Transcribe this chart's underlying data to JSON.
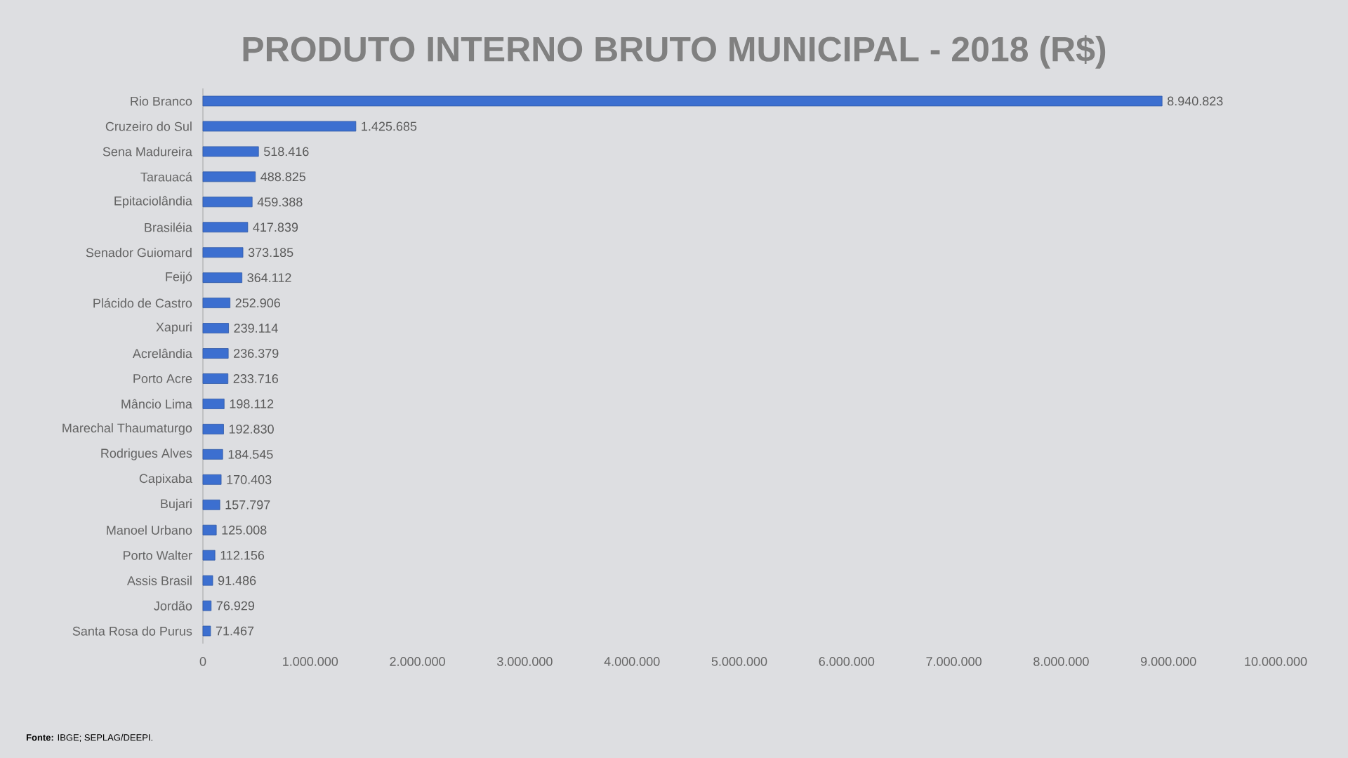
{
  "chart_data": {
    "type": "bar",
    "orientation": "horizontal",
    "title": "PRODUTO INTERNO BRUTO MUNICIPAL - 2018 (R$)",
    "categories": [
      "Rio Branco",
      "Cruzeiro do Sul",
      "Sena Madureira",
      "Tarauacá",
      "Epitaciolândia",
      "Brasiléia",
      "Senador Guiomard",
      "Feijó",
      "Plácido de Castro",
      "Xapuri",
      "Acrelândia",
      "Porto Acre",
      "Mâncio Lima",
      "Marechal Thaumaturgo",
      "Rodrigues Alves",
      "Capixaba",
      "Bujari",
      "Manoel Urbano",
      "Porto Walter",
      "Assis Brasil",
      "Jordão",
      "Santa Rosa do Purus"
    ],
    "values": [
      8940823,
      1425685,
      518416,
      488825,
      459388,
      417839,
      373185,
      364112,
      252906,
      239114,
      236379,
      233716,
      198112,
      192830,
      184545,
      170403,
      157797,
      125008,
      112156,
      91486,
      76929,
      71467
    ],
    "value_labels": [
      "8.940.823",
      "1.425.685",
      "518.416",
      "488.825",
      "459.388",
      "417.839",
      "373.185",
      "364.112",
      "252.906",
      "239.114",
      "236.379",
      "233.716",
      "198.112",
      "192.830",
      "184.545",
      "170.403",
      "157.797",
      "125.008",
      "112.156",
      "91.486",
      "76.929",
      "71.467"
    ],
    "color": "#3c6fd0",
    "xlim": [
      0,
      10000000
    ],
    "xticks": [
      0,
      {
        "value": 1000000,
        "label": "1.000.000"
      },
      {
        "value": 2000000,
        "label": "2.000.000"
      },
      {
        "value": 3000000,
        "label": "3.000.000"
      },
      {
        "value": 4000000,
        "label": "4.000.000"
      },
      {
        "value": 5000000,
        "label": "5.000.000"
      },
      {
        "value": 6000000,
        "label": "6.000.000"
      },
      {
        "value": 7000000,
        "label": "7.000.000"
      },
      {
        "value": 8000000,
        "label": "8.000.000"
      },
      {
        "value": 9000000,
        "label": "9.000.000"
      },
      {
        "value": 10000000,
        "label": "10.000.000"
      }
    ],
    "annotations": [
      "**Fonte:** IBGE; SEPLAG/DEEPI."
    ]
  }
}
